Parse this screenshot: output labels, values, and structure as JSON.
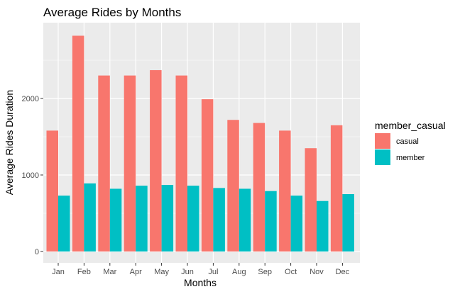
{
  "chart_data": {
    "type": "bar",
    "title": "Average Rides by Months",
    "xlabel": "Months",
    "ylabel": "Average Rides Duration",
    "categories": [
      "Jan",
      "Feb",
      "Mar",
      "Apr",
      "May",
      "Jun",
      "Jul",
      "Aug",
      "Sep",
      "Oct",
      "Nov",
      "Dec"
    ],
    "series": [
      {
        "name": "casual",
        "color": "#F8766D",
        "values": [
          1580,
          2820,
          2300,
          2300,
          2370,
          2300,
          1990,
          1720,
          1680,
          1580,
          1350,
          1650
        ]
      },
      {
        "name": "member",
        "color": "#00BFC4",
        "values": [
          730,
          890,
          820,
          860,
          870,
          860,
          830,
          820,
          790,
          730,
          660,
          750
        ]
      }
    ],
    "ylim": [
      0,
      3000
    ],
    "yticks": [
      0,
      1000,
      2000
    ],
    "grid": true,
    "legend": {
      "title": "member_casual",
      "position": "right"
    }
  }
}
